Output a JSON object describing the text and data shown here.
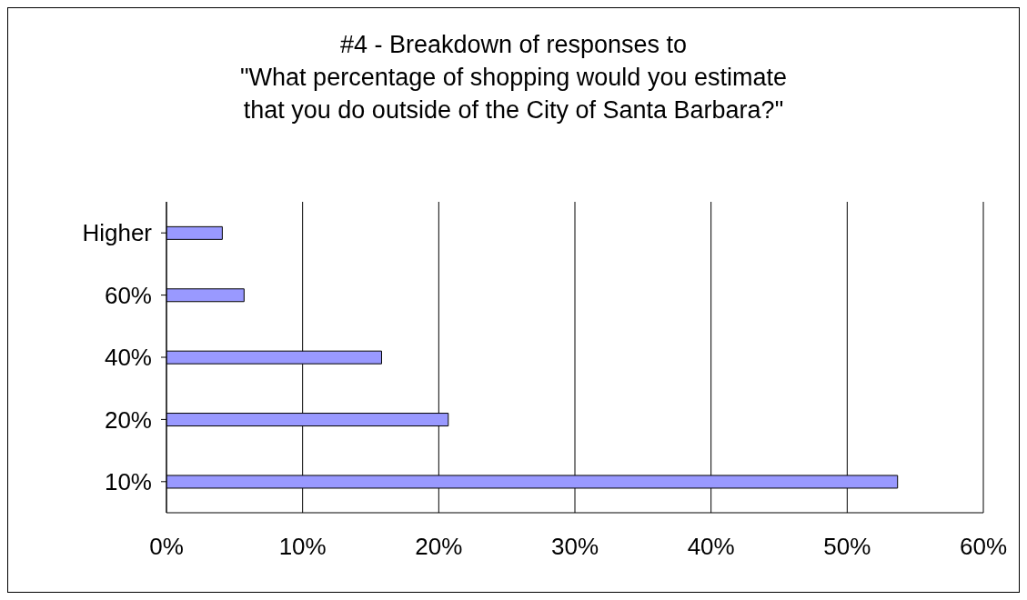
{
  "chart_data": {
    "type": "bar",
    "orientation": "horizontal",
    "title": "#4 - Breakdown of responses to\n\"What percentage of shopping would you estimate\nthat you do outside of the City of Santa Barbara?\"",
    "categories": [
      "Higher",
      "60%",
      "40%",
      "20%",
      "10%"
    ],
    "values": [
      4.1,
      5.7,
      15.8,
      20.7,
      53.7
    ],
    "color": "#9999ff",
    "xlim": [
      0,
      60
    ],
    "xticks": [
      {
        "value": 0,
        "label": "0%"
      },
      {
        "value": 10,
        "label": "10%"
      },
      {
        "value": 20,
        "label": "20%"
      },
      {
        "value": 30,
        "label": "30%"
      },
      {
        "value": 40,
        "label": "40%"
      },
      {
        "value": 50,
        "label": "50%"
      },
      {
        "value": 60,
        "label": "60%"
      }
    ],
    "grid": "x",
    "legend": false
  }
}
